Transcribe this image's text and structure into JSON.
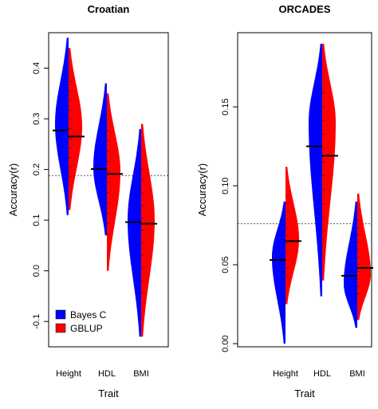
{
  "chart_data": [
    {
      "type": "violin",
      "title": "Croatian",
      "xlabel": "Trait",
      "ylabel": "Accuracy(r)",
      "ylim": [
        -0.15,
        0.47
      ],
      "yticks": [
        -0.1,
        0.0,
        0.1,
        0.2,
        0.3,
        0.4
      ],
      "ytick_labels": [
        "-0.1",
        "0.0",
        "0.1",
        "0.2",
        "0.3",
        "0.4"
      ],
      "categories": [
        "Height",
        "HDL",
        "BMI"
      ],
      "reference_line": 0.188,
      "legend": {
        "position": "bottom-left",
        "entries": [
          {
            "name": "Bayes C",
            "color": "#0000ff"
          },
          {
            "name": "GBLUP",
            "color": "#ff0000"
          }
        ]
      },
      "series": [
        {
          "name": "Bayes C",
          "color": "#0000ff",
          "means": [
            0.277,
            0.201,
            0.096
          ],
          "ranges": [
            [
              0.11,
              0.46
            ],
            [
              0.07,
              0.37
            ],
            [
              -0.13,
              0.28
            ]
          ],
          "modes": [
            0.29,
            0.205,
            0.1
          ]
        },
        {
          "name": "GBLUP",
          "color": "#ff0000",
          "means": [
            0.265,
            0.191,
            0.093
          ],
          "ranges": [
            [
              0.12,
              0.44
            ],
            [
              0.0,
              0.35
            ],
            [
              -0.13,
              0.29
            ]
          ],
          "modes": [
            0.285,
            0.195,
            0.1
          ]
        }
      ]
    },
    {
      "type": "violin",
      "title": "ORCADES",
      "xlabel": "Trait",
      "ylabel": "Accuracy(r)",
      "ylim": [
        -0.002,
        0.197
      ],
      "yticks": [
        0.0,
        0.05,
        0.1,
        0.15
      ],
      "ytick_labels": [
        "0.00",
        "0.05",
        "0.10",
        "0.15"
      ],
      "categories": [
        "Height",
        "HDL",
        "BMI"
      ],
      "reference_line": 0.076,
      "series": [
        {
          "name": "Bayes C",
          "color": "#0000ff",
          "means": [
            0.053,
            0.125,
            0.043
          ],
          "ranges": [
            [
              0.0,
              0.09
            ],
            [
              0.03,
              0.19
            ],
            [
              0.01,
              0.09
            ]
          ],
          "modes": [
            0.055,
            0.14,
            0.038
          ]
        },
        {
          "name": "GBLUP",
          "color": "#ff0000",
          "means": [
            0.065,
            0.119,
            0.048
          ],
          "ranges": [
            [
              0.025,
              0.112
            ],
            [
              0.04,
              0.19
            ],
            [
              0.015,
              0.095
            ]
          ],
          "modes": [
            0.066,
            0.14,
            0.044
          ]
        }
      ]
    }
  ]
}
